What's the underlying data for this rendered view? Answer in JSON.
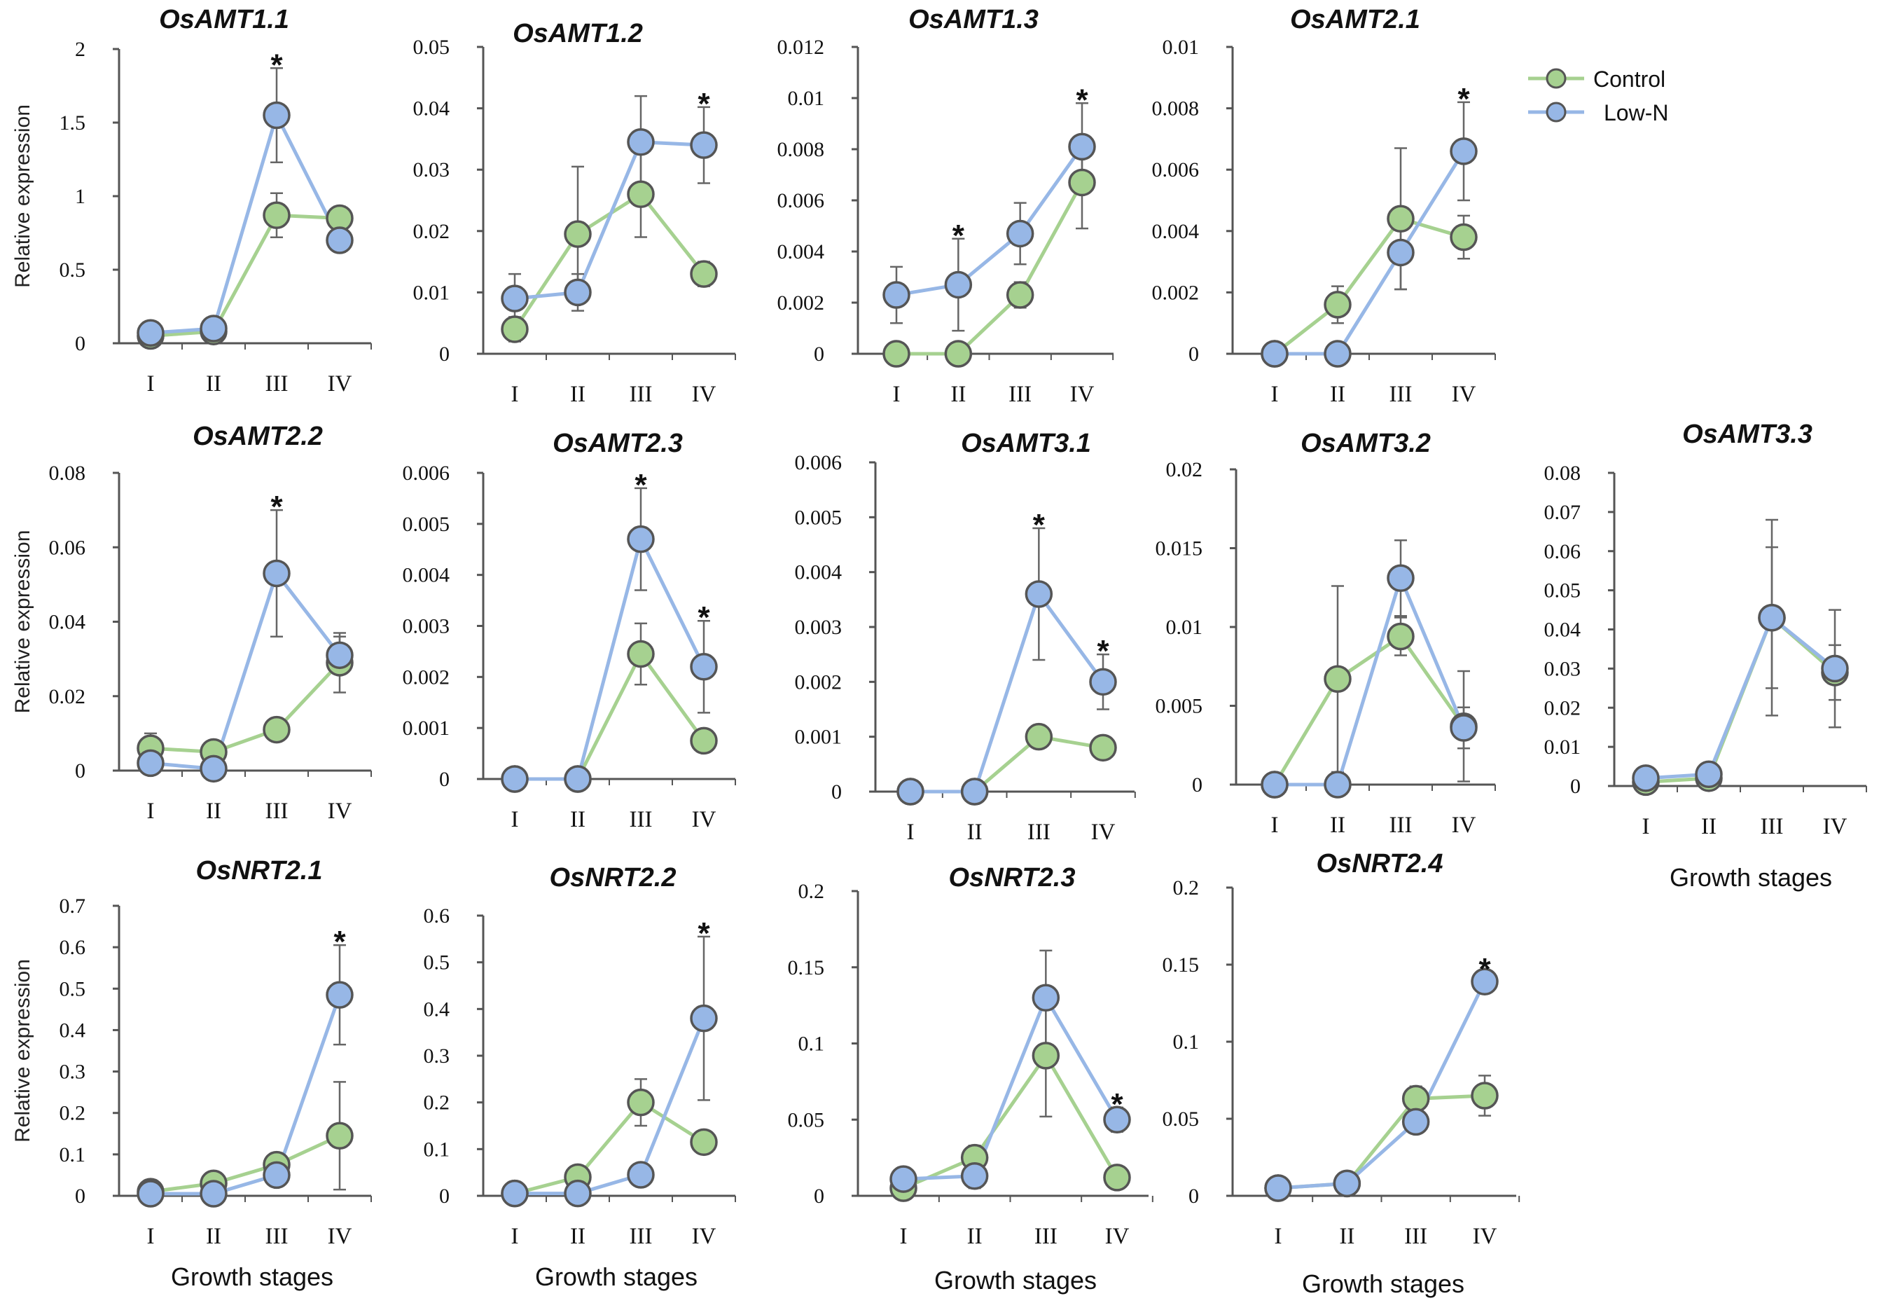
{
  "figure": {
    "legend": {
      "control_label": "Control",
      "lown_label": "Low-N"
    },
    "colors": {
      "control": "#a6d190",
      "lown": "#97b7e6",
      "marker_edge": "#555555",
      "axis": "#555555",
      "error": "#666666"
    },
    "x_tick_labels": [
      "I",
      "II",
      "III",
      "IV"
    ]
  },
  "chart_data": [
    {
      "type": "line",
      "title": "OsAMT1.1",
      "ylabel": "Relative expression",
      "xlabel": "",
      "categories": [
        "I",
        "II",
        "III",
        "IV"
      ],
      "ylim": [
        0,
        2
      ],
      "yticks": [
        "0",
        "0.5",
        "1",
        "1.5",
        "2"
      ],
      "series": [
        {
          "name": "Control",
          "values": [
            0.05,
            0.08,
            0.87,
            0.85
          ],
          "errors": [
            0.03,
            0.04,
            0.15,
            0.08
          ]
        },
        {
          "name": "Low-N",
          "values": [
            0.07,
            0.1,
            1.55,
            0.7
          ],
          "errors": [
            0.04,
            0.05,
            0.32,
            0.08
          ]
        }
      ],
      "significant": [
        false,
        false,
        true,
        false
      ]
    },
    {
      "type": "line",
      "title": "OsAMT1.2",
      "ylabel": "",
      "xlabel": "",
      "categories": [
        "I",
        "II",
        "III",
        "IV"
      ],
      "ylim": [
        0,
        0.05
      ],
      "yticks": [
        "0",
        "0.01",
        "0.02",
        "0.03",
        "0.04",
        "0.05"
      ],
      "series": [
        {
          "name": "Control",
          "values": [
            0.004,
            0.0195,
            0.026,
            0.013
          ],
          "errors": [
            0.002,
            0.011,
            0.007,
            0.002
          ]
        },
        {
          "name": "Low-N",
          "values": [
            0.009,
            0.01,
            0.0345,
            0.034
          ],
          "errors": [
            0.004,
            0.003,
            0.0075,
            0.0062
          ]
        }
      ],
      "significant": [
        false,
        false,
        false,
        true
      ]
    },
    {
      "type": "line",
      "title": "OsAMT1.3",
      "ylabel": "",
      "xlabel": "",
      "categories": [
        "I",
        "II",
        "III",
        "IV"
      ],
      "ylim": [
        0,
        0.012
      ],
      "yticks": [
        "0",
        "0.002",
        "0.004",
        "0.006",
        "0.008",
        "0.01",
        "0.012"
      ],
      "series": [
        {
          "name": "Control",
          "values": [
            0.0,
            0.0,
            0.0023,
            0.0067
          ],
          "errors": [
            0.0001,
            0.0001,
            0.0005,
            0.0018
          ]
        },
        {
          "name": "Low-N",
          "values": [
            0.0023,
            0.0027,
            0.0047,
            0.0081
          ],
          "errors": [
            0.0011,
            0.0018,
            0.0012,
            0.0017
          ]
        }
      ],
      "significant": [
        false,
        true,
        false,
        true
      ]
    },
    {
      "type": "line",
      "title": "OsAMT2.1",
      "ylabel": "",
      "xlabel": "",
      "categories": [
        "I",
        "II",
        "III",
        "IV"
      ],
      "ylim": [
        0,
        0.01
      ],
      "yticks": [
        "0",
        "0.002",
        "0.004",
        "0.006",
        "0.008",
        "0.01"
      ],
      "series": [
        {
          "name": "Control",
          "values": [
            0.0,
            0.0016,
            0.0044,
            0.0038
          ],
          "errors": [
            0.0001,
            0.0006,
            0.0023,
            0.0007
          ]
        },
        {
          "name": "Low-N",
          "values": [
            0.0,
            0.0,
            0.0033,
            0.0066
          ],
          "errors": [
            0.0001,
            0.0001,
            0.0012,
            0.0016
          ]
        }
      ],
      "significant": [
        false,
        false,
        false,
        true
      ]
    },
    {
      "type": "line",
      "title": "OsAMT2.2",
      "ylabel": "Relative expression",
      "xlabel": "",
      "categories": [
        "I",
        "II",
        "III",
        "IV"
      ],
      "ylim": [
        0,
        0.08
      ],
      "yticks": [
        "0",
        "0.02",
        "0.04",
        "0.06",
        "0.08"
      ],
      "series": [
        {
          "name": "Control",
          "values": [
            0.006,
            0.005,
            0.011,
            0.029
          ],
          "errors": [
            0.004,
            0.003,
            0.003,
            0.008
          ]
        },
        {
          "name": "Low-N",
          "values": [
            0.002,
            0.0005,
            0.053,
            0.031
          ],
          "errors": [
            0.001,
            0.001,
            0.017,
            0.005
          ]
        }
      ],
      "significant": [
        false,
        false,
        true,
        false
      ]
    },
    {
      "type": "line",
      "title": "OsAMT2.3",
      "ylabel": "",
      "xlabel": "",
      "categories": [
        "I",
        "II",
        "III",
        "IV"
      ],
      "ylim": [
        0,
        0.006
      ],
      "yticks": [
        "0",
        "0.001",
        "0.002",
        "0.003",
        "0.004",
        "0.005",
        "0.006"
      ],
      "series": [
        {
          "name": "Control",
          "values": [
            0.0,
            0.0,
            0.00245,
            0.00075
          ],
          "errors": [
            5e-05,
            5e-05,
            0.0006,
            0.0002
          ]
        },
        {
          "name": "Low-N",
          "values": [
            0.0,
            0.0,
            0.0047,
            0.0022
          ],
          "errors": [
            5e-05,
            5e-05,
            0.001,
            0.0009
          ]
        }
      ],
      "significant": [
        false,
        false,
        true,
        true
      ]
    },
    {
      "type": "line",
      "title": "OsAMT3.1",
      "ylabel": "",
      "xlabel": "",
      "categories": [
        "I",
        "II",
        "III",
        "IV"
      ],
      "ylim": [
        0,
        0.006
      ],
      "yticks": [
        "0",
        "0.001",
        "0.002",
        "0.003",
        "0.004",
        "0.005",
        "0.006"
      ],
      "series": [
        {
          "name": "Control",
          "values": [
            0.0,
            0.0,
            0.001,
            0.0008
          ],
          "errors": [
            5e-05,
            5e-05,
            0.0001,
            0.0001
          ]
        },
        {
          "name": "Low-N",
          "values": [
            0.0,
            0.0,
            0.0036,
            0.002
          ],
          "errors": [
            5e-05,
            5e-05,
            0.0012,
            0.0005
          ]
        }
      ],
      "significant": [
        false,
        false,
        true,
        true
      ]
    },
    {
      "type": "line",
      "title": "OsAMT3.2",
      "ylabel": "",
      "xlabel": "",
      "categories": [
        "I",
        "II",
        "III",
        "IV"
      ],
      "ylim": [
        0,
        0.02
      ],
      "yticks": [
        "0",
        "0.005",
        "0.01",
        "0.015",
        "0.02"
      ],
      "series": [
        {
          "name": "Control",
          "values": [
            0.0,
            0.0067,
            0.0094,
            0.0037
          ],
          "errors": [
            0.0001,
            0.0059,
            0.0012,
            0.0035
          ]
        },
        {
          "name": "Low-N",
          "values": [
            0.0,
            0.0,
            0.0131,
            0.0036
          ],
          "errors": [
            0.0001,
            0.0001,
            0.0024,
            0.0013
          ]
        }
      ],
      "significant": [
        false,
        false,
        false,
        false
      ]
    },
    {
      "type": "line",
      "title": "OsAMT3.3",
      "ylabel": "",
      "xlabel": "Growth stages",
      "categories": [
        "I",
        "II",
        "III",
        "IV"
      ],
      "ylim": [
        0,
        0.08
      ],
      "yticks": [
        "0",
        "0.01",
        "0.02",
        "0.03",
        "0.04",
        "0.05",
        "0.06",
        "0.07",
        "0.08"
      ],
      "series": [
        {
          "name": "Control",
          "values": [
            0.001,
            0.002,
            0.043,
            0.029
          ],
          "errors": [
            0.001,
            0.001,
            0.018,
            0.007
          ]
        },
        {
          "name": "Low-N",
          "values": [
            0.002,
            0.003,
            0.043,
            0.03
          ],
          "errors": [
            0.001,
            0.002,
            0.025,
            0.015
          ]
        }
      ],
      "significant": [
        false,
        false,
        false,
        false
      ]
    },
    {
      "type": "line",
      "title": "OsNRT2.1",
      "ylabel": "Relative expression",
      "xlabel": "Growth stages",
      "categories": [
        "I",
        "II",
        "III",
        "IV"
      ],
      "ylim": [
        0,
        0.7
      ],
      "yticks": [
        "0",
        "0.1",
        "0.2",
        "0.3",
        "0.4",
        "0.5",
        "0.6",
        "0.7"
      ],
      "series": [
        {
          "name": "Control",
          "values": [
            0.01,
            0.03,
            0.075,
            0.145
          ],
          "errors": [
            0.01,
            0.01,
            0.02,
            0.13
          ]
        },
        {
          "name": "Low-N",
          "values": [
            0.005,
            0.005,
            0.05,
            0.485
          ],
          "errors": [
            0.005,
            0.005,
            0.02,
            0.12
          ]
        }
      ],
      "significant": [
        false,
        false,
        false,
        true
      ]
    },
    {
      "type": "line",
      "title": "OsNRT2.2",
      "ylabel": "",
      "xlabel": "Growth stages",
      "categories": [
        "I",
        "II",
        "III",
        "IV"
      ],
      "ylim": [
        0,
        0.6
      ],
      "yticks": [
        "0",
        "0.1",
        "0.2",
        "0.3",
        "0.4",
        "0.5",
        "0.6"
      ],
      "series": [
        {
          "name": "Control",
          "values": [
            0.005,
            0.04,
            0.2,
            0.115
          ],
          "errors": [
            0.005,
            0.01,
            0.05,
            0.02
          ]
        },
        {
          "name": "Low-N",
          "values": [
            0.005,
            0.005,
            0.045,
            0.38
          ],
          "errors": [
            0.02,
            0.005,
            0.02,
            0.175
          ]
        }
      ],
      "significant": [
        false,
        false,
        false,
        true
      ]
    },
    {
      "type": "line",
      "title": "OsNRT2.3",
      "ylabel": "",
      "xlabel": "Growth stages",
      "categories": [
        "I",
        "II",
        "III",
        "IV"
      ],
      "ylim": [
        0,
        0.2
      ],
      "yticks": [
        "0",
        "0.05",
        "0.1",
        "0.15",
        "0.2"
      ],
      "series": [
        {
          "name": "Control",
          "values": [
            0.005,
            0.025,
            0.092,
            0.012
          ],
          "errors": [
            0.003,
            0.008,
            0.04,
            0.004
          ]
        },
        {
          "name": "Low-N",
          "values": [
            0.011,
            0.013,
            0.13,
            0.05
          ],
          "errors": [
            0.004,
            0.008,
            0.031,
            0.008
          ]
        }
      ],
      "significant": [
        false,
        false,
        false,
        true
      ]
    },
    {
      "type": "line",
      "title": "OsNRT2.4",
      "ylabel": "",
      "xlabel": "Growth stages",
      "categories": [
        "I",
        "II",
        "III",
        "IV"
      ],
      "ylim": [
        0,
        0.2
      ],
      "yticks": [
        "0",
        "0.05",
        "0.1",
        "0.15",
        "0.2"
      ],
      "series": [
        {
          "name": "Control",
          "values": [
            0.005,
            0.008,
            0.063,
            0.065
          ],
          "errors": [
            0.003,
            0.003,
            0.008,
            0.013
          ]
        },
        {
          "name": "Low-N",
          "values": [
            0.005,
            0.008,
            0.048,
            0.139
          ],
          "errors": [
            0.003,
            0.003,
            0.007,
            0.006
          ]
        }
      ],
      "significant": [
        false,
        false,
        false,
        true
      ]
    }
  ]
}
